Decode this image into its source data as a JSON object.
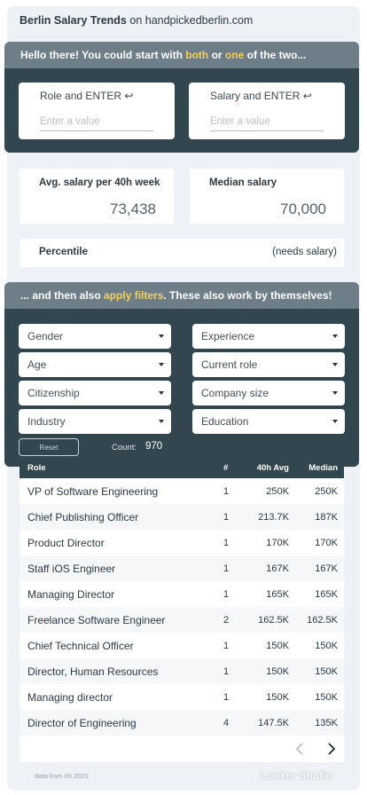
{
  "header": {
    "title_bold": "Berlin Salary Trends",
    "title_rest": " on handpickedberlin.com"
  },
  "intro_banner": {
    "prefix": "Hello there! You could start with ",
    "hl1": "both",
    "middle": " or ",
    "hl2": "one",
    "suffix": " of the two..."
  },
  "inputs": {
    "role": {
      "label": "Role and ENTER ↩",
      "placeholder": "Enter a value",
      "value": ""
    },
    "salary": {
      "label": "Salary and ENTER ↩",
      "placeholder": "Enter a value",
      "value": ""
    }
  },
  "stats": {
    "avg_label": "Avg. salary per 40h week",
    "avg_value": "73,438",
    "median_label": "Median salary",
    "median_value": "70,000",
    "percentile_label": "Percentile",
    "percentile_value": "(needs salary)"
  },
  "filters_banner": {
    "prefix": "... and then also ",
    "hl": "apply filters",
    "suffix": ". These also work by themselves!"
  },
  "filters": {
    "gender": "Gender",
    "experience": "Experience",
    "age": "Age",
    "current_role": "Current role",
    "citizenship": "Citizenship",
    "company_size": "Company size",
    "industry": "Industry",
    "education": "Education",
    "reset_label": "Reset",
    "count_label": "Count:",
    "count_value": "970"
  },
  "table": {
    "headers": {
      "role": "Role",
      "num": "#",
      "avg": "40h Avg",
      "median": "Median"
    },
    "rows": [
      {
        "role": "VP of Software Engineering",
        "num": "1",
        "avg": "250K",
        "median": "250K"
      },
      {
        "role": "Chief Publishing Officer",
        "num": "1",
        "avg": "213.7K",
        "median": "187K"
      },
      {
        "role": "Product Director",
        "num": "1",
        "avg": "170K",
        "median": "170K"
      },
      {
        "role": "Staff iOS Engineer",
        "num": "1",
        "avg": "167K",
        "median": "167K"
      },
      {
        "role": "Managing Director",
        "num": "1",
        "avg": "165K",
        "median": "165K"
      },
      {
        "role": "Freelance Software Engineer",
        "num": "2",
        "avg": "162.5K",
        "median": "162.5K"
      },
      {
        "role": "Chief Technical Officer",
        "num": "1",
        "avg": "150K",
        "median": "150K"
      },
      {
        "role": "Director, Human Resources",
        "num": "1",
        "avg": "150K",
        "median": "150K"
      },
      {
        "role": "Managing director",
        "num": "1",
        "avg": "150K",
        "median": "150K"
      },
      {
        "role": "Director of Engineering",
        "num": "4",
        "avg": "147.5K",
        "median": "135K"
      }
    ]
  },
  "footer": {
    "data_note": "data from 06.2023",
    "brand": "Looker Studio"
  },
  "icons": {
    "prev": "chevron-left-icon",
    "next": "chevron-right-icon",
    "dropdown": "caret-down-icon"
  },
  "colors": {
    "dark_panel": "#324650",
    "banner": "#6e7e88",
    "highlight": "#f2d15a",
    "background": "#eef1f5"
  }
}
